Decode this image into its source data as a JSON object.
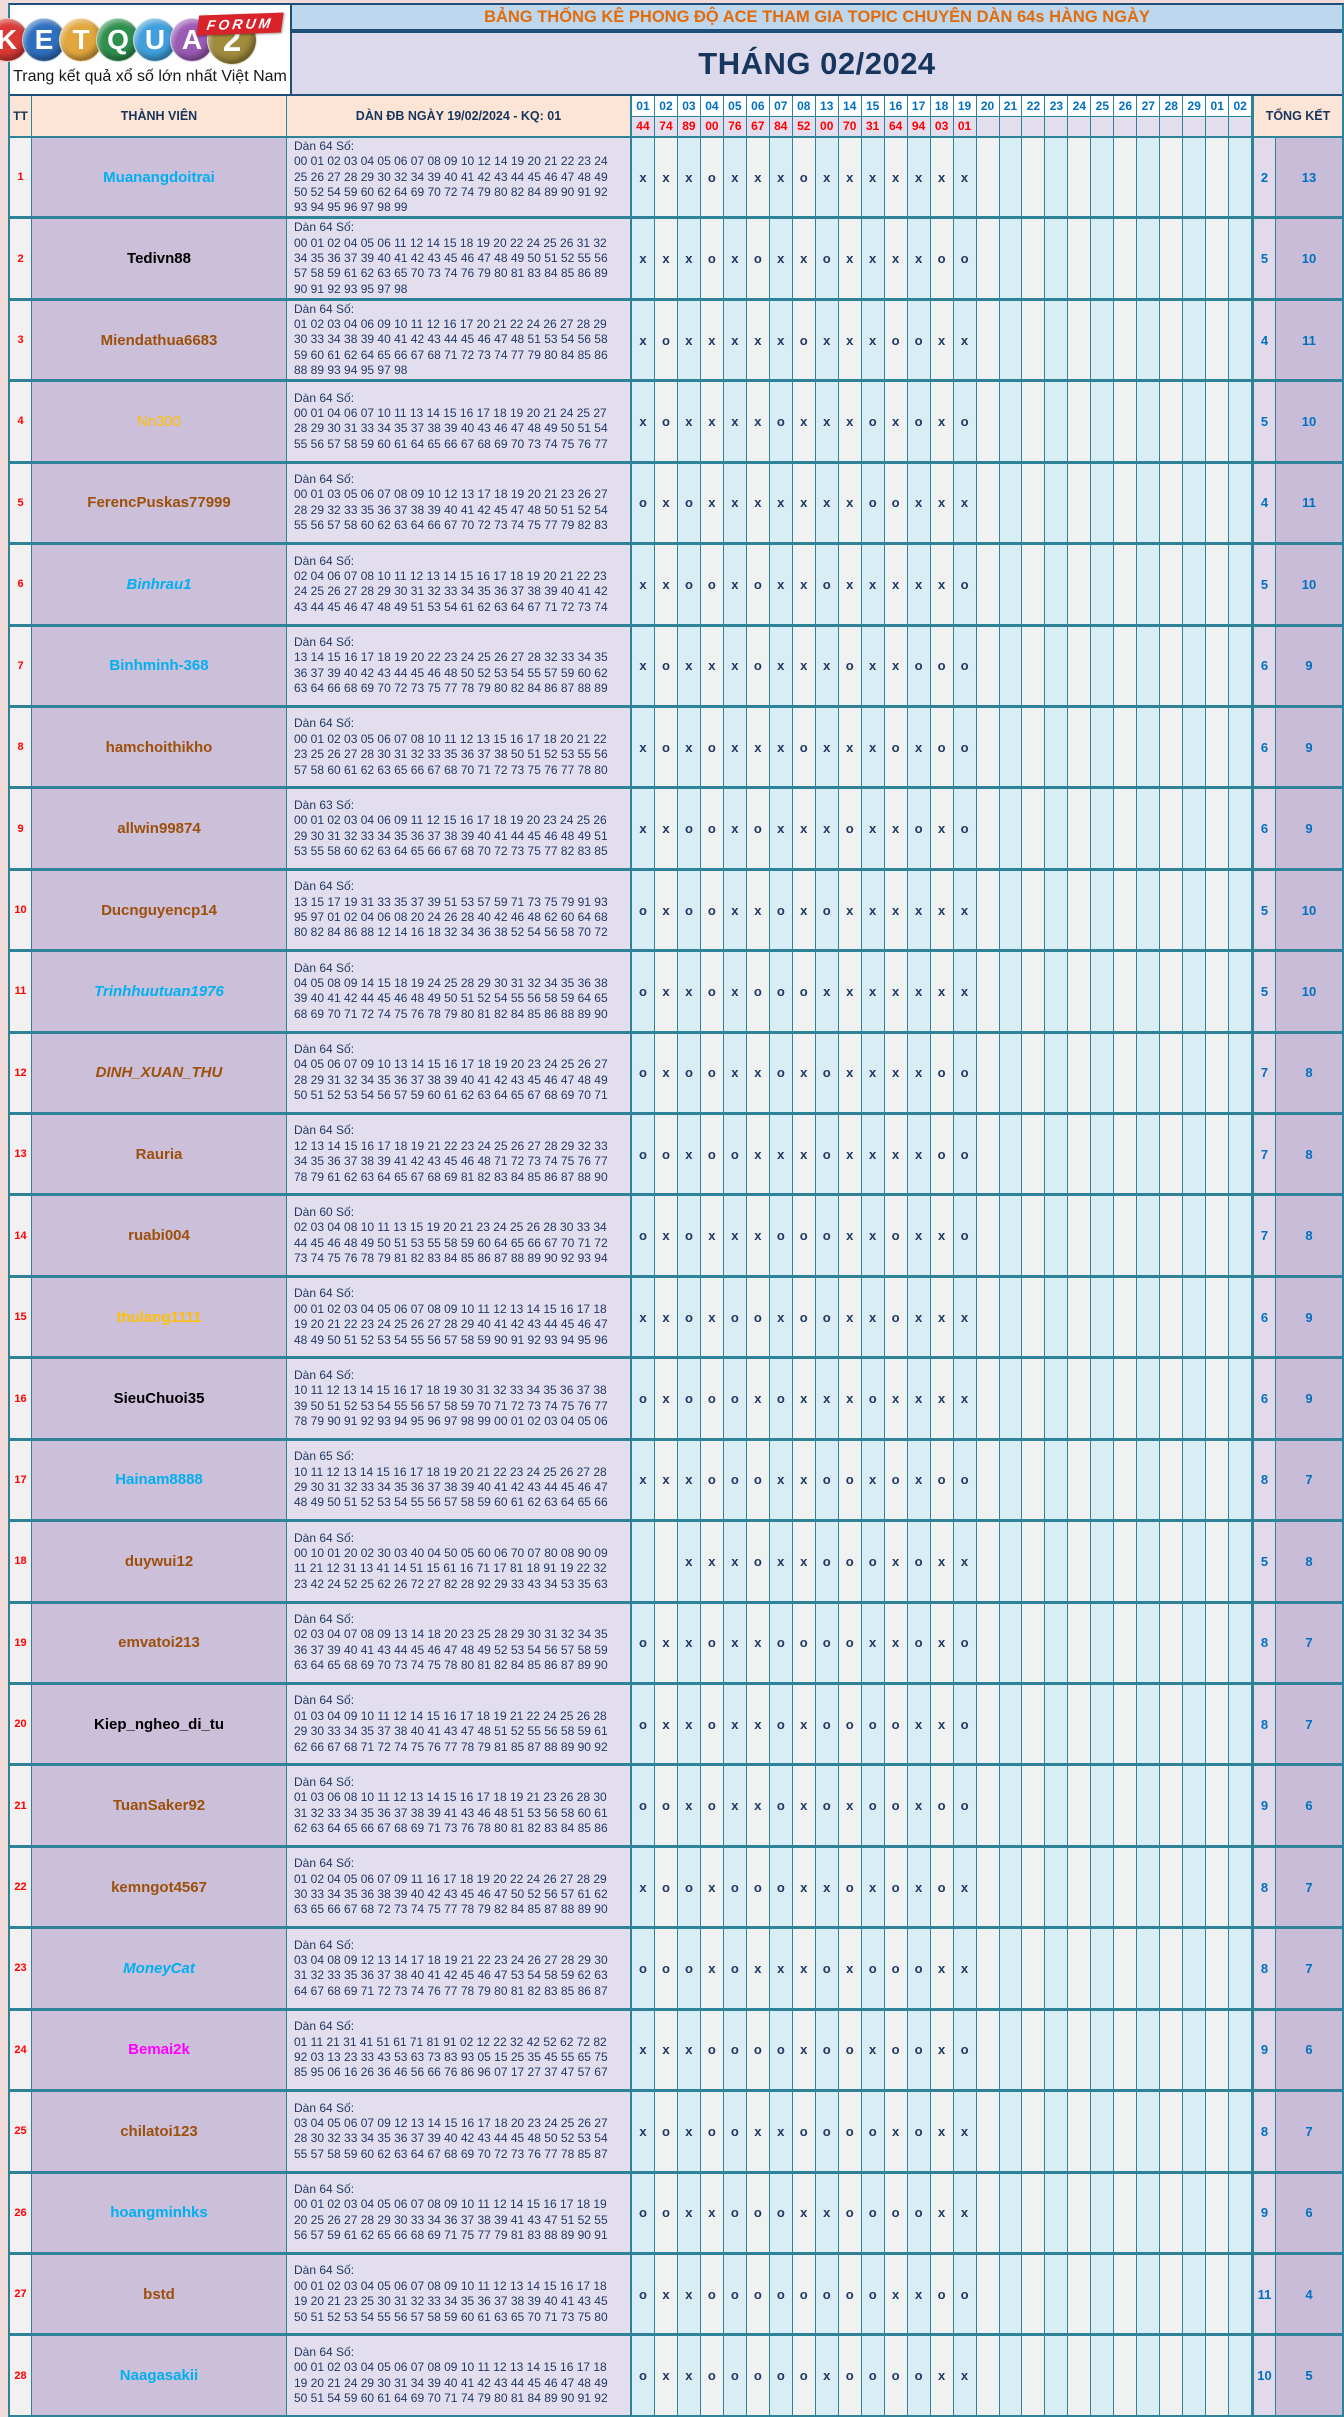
{
  "logo": {
    "letters": [
      {
        "ch": "K",
        "color": "#D93A36"
      },
      {
        "ch": "E",
        "color": "#2F6FBF"
      },
      {
        "ch": "T",
        "color": "#E2A63D"
      },
      {
        "ch": "Q",
        "color": "#2F8F4E"
      },
      {
        "ch": "U",
        "color": "#41A0DC"
      },
      {
        "ch": "A",
        "color": "#9A5BB5"
      },
      {
        "ch": "2",
        "color": "#A08A3C"
      }
    ],
    "forum_label": "FORUM",
    "tagline": "Trang kết quả xổ số lớn nhất Việt Nam"
  },
  "header": {
    "title": "BẢNG THỐNG KÊ PHONG ĐỘ ACE THAM GIA TOPIC CHUYÊN DÀN 64s HÀNG NGÀY",
    "month_title": "THÁNG 02/2024",
    "col_tt": "TT",
    "col_member": "THÀNH VIÊN",
    "col_dan": "DÀN ĐB NGÀY 19/02/2024 - KQ: 01",
    "col_total": "TỔNG KẾT",
    "dates": [
      "01",
      "02",
      "03",
      "04",
      "05",
      "06",
      "07",
      "08",
      "13",
      "14",
      "15",
      "16",
      "17",
      "18",
      "19",
      "20",
      "21",
      "22",
      "23",
      "24",
      "25",
      "26",
      "27",
      "28",
      "29",
      "01",
      "02"
    ],
    "results": [
      "44",
      "74",
      "89",
      "00",
      "76",
      "67",
      "84",
      "52",
      "00",
      "70",
      "31",
      "64",
      "94",
      "03",
      "01"
    ]
  },
  "theme": {
    "border_teal": "#2E8399",
    "mark_navy": "#1F3864",
    "date_blue": "#0070C0",
    "result_red": "#FF0000",
    "name_cyan": "#00B0F0",
    "name_brown": "#9C500B",
    "name_orange": "#FFC000",
    "name_magenta": "#FF00FF",
    "header_peach": "#FCE4D6",
    "cell_mauve": "#CBBFD9",
    "cell_lavender": "#E3DEED"
  },
  "members": [
    {
      "tt": "1",
      "name": "Muanangdoitrai",
      "color": "#00B0F0",
      "bold": true,
      "italic": false,
      "dan_label": "Dàn 64 Số:",
      "lines": [
        "00 01 02 03 04 05 06 07 08 09 10 12 14 19 20 21 22 23 24",
        "25 26 27 28 29 30 32 34 39 40 41 42 43 44 45 46 47 48 49",
        "50 52 54 59 60 62 64 69 70 72 74 79 80 82 84 89 90 91 92",
        "93 94 95 96 97 98 99"
      ],
      "marks": "x x x o x x x o x x x x x x x",
      "totals": [
        "2",
        "13"
      ]
    },
    {
      "tt": "2",
      "name": "Tedivn88",
      "color": "#000000",
      "bold": true,
      "italic": false,
      "dan_label": "Dàn 64 Số:",
      "lines": [
        "00 01 02 04 05 06 11 12 14 15 18 19 20 22 24 25 26 31 32",
        "34 35 36 37 39 40 41 42 43 45 46 47 48 49 50 51 52 55 56",
        "57 58 59 61 62 63 65 70 73 74 76 79 80 81 83 84 85 86 89",
        "90 91 92 93 95 97 98"
      ],
      "marks": "x x x o x o x x o x x x x o o",
      "totals": [
        "5",
        "10"
      ]
    },
    {
      "tt": "3",
      "name": "Miendathua6683",
      "color": "#9C500B",
      "bold": true,
      "italic": false,
      "dan_label": "Dàn 64 Số:",
      "lines": [
        "01 02 03 04 06 09 10 11 12 16 17 20 21 22 24 26 27 28 29",
        "30 33 34 38 39 40 41 42 43 44 45 46 47 48 51 53 54 56 58",
        "59 60 61 62 64 65 66 67 68 71 72 73 74 77 79 80 84 85 86",
        "88 89 93 94 95 97 98"
      ],
      "marks": "x o x x x x x o x x x o o x x",
      "totals": [
        "4",
        "11"
      ]
    },
    {
      "tt": "4",
      "name": "Nn300",
      "color": "#FFC000",
      "bold": false,
      "italic": false,
      "dan_label": "Dàn 64 Số:",
      "lines": [
        "00 01 04 06 07 10 11 13 14 15 16 17 18 19 20 21 24 25 27",
        "28 29 30 31 33 34 35 37 38 39 40 43 46 47 48 49 50 51 54",
        "55 56 57 58 59 60 61 64 65 66 67 68 69 70 73 74 75 76 77"
      ],
      "marks": "x o x x x x o x x x o x o x o",
      "totals": [
        "5",
        "10"
      ]
    },
    {
      "tt": "5",
      "name": "FerencPuskas77999",
      "color": "#9C500B",
      "bold": true,
      "italic": false,
      "dan_label": "Dàn 64 Số:",
      "lines": [
        "00 01 03 05 06 07 08 09 10 12 13 17 18 19 20 21 23 26 27",
        "28 29 32 33 35 36 37 38 39 40 41 42 45 47 48 50 51 52 54",
        "55 56 57 58 60 62 63 64 66 67 70 72 73 74 75 77 79 82 83"
      ],
      "marks": "o x o x x x x x x x o o x x x",
      "totals": [
        "4",
        "11"
      ]
    },
    {
      "tt": "6",
      "name": "Binhrau1",
      "color": "#00B0F0",
      "bold": true,
      "italic": true,
      "dan_label": "Dàn 64 Số:",
      "lines": [
        "02 04 06 07 08 10 11 12 13 14 15 16 17 18 19 20 21 22 23",
        "24 25 26 27 28 29 30 31 32 33 34 35 36 37 38 39 40 41 42",
        "43 44 45 46 47 48 49 51 53 54 61 62 63 64 67 71 72 73 74"
      ],
      "marks": "x x o o x o x x o x x x x x o",
      "totals": [
        "5",
        "10"
      ]
    },
    {
      "tt": "7",
      "name": "Binhminh-368",
      "color": "#00B0F0",
      "bold": true,
      "italic": false,
      "dan_label": "Dàn 64 Số:",
      "lines": [
        "13 14 15 16 17 18 19 20 22 23 24 25 26 27 28 32 33 34 35",
        "36 37 39 40 42 43 44 45 46 48 50 52 53 54 55 57 59 60 62",
        "63 64 66 68 69 70 72 73 75 77 78 79 80 82 84 86 87 88 89"
      ],
      "marks": "x o x x x o x x x o x x o o o",
      "totals": [
        "6",
        "9"
      ]
    },
    {
      "tt": "8",
      "name": "hamchoithikho",
      "color": "#9C500B",
      "bold": true,
      "italic": false,
      "dan_label": "Dàn 64 Số:",
      "lines": [
        "00 01 02 03 05 06 07 08 10 11 12 13 15 16 17 18 20 21 22",
        "23 25 26 27 28 30 31 32 33 35 36 37 38 50 51 52 53 55 56",
        "57 58 60 61 62 63 65 66 67 68 70 71 72 73 75 76 77 78 80"
      ],
      "marks": "x o x o x x x o x x x o x o o",
      "totals": [
        "6",
        "9"
      ]
    },
    {
      "tt": "9",
      "name": "allwin99874",
      "color": "#9C500B",
      "bold": true,
      "italic": false,
      "dan_label": "Dàn 63 Số:",
      "lines": [
        "00 01 02 03 04 06 09 11 12 15 16 17 18 19 20 23 24 25 26",
        "29 30 31 32 33 34 35 36 37 38 39 40 41 44 45 46 48 49 51",
        "53 55 58 60 62 63 64 65 66 67 68 70 72 73 75 77 82 83 85"
      ],
      "marks": "x x o o x o x x x o x x o x o",
      "totals": [
        "6",
        "9"
      ]
    },
    {
      "tt": "10",
      "name": "Ducnguyencp14",
      "color": "#9C500B",
      "bold": true,
      "italic": false,
      "dan_label": "Dàn 64 Số:",
      "lines": [
        "13 15 17 19 31 33 35 37 39 51 53 57 59 71 73 75 79 91 93",
        "95 97 01 02 04 06 08 20 24 26 28 40 42 46 48 62 60 64 68",
        "80 82 84 86 88 12 14 16 18 32 34 36 38 52 54 56 58 70 72"
      ],
      "marks": "o x o o x x o x o x x x x x x",
      "totals": [
        "5",
        "10"
      ]
    },
    {
      "tt": "11",
      "name": "Trinhhuutuan1976",
      "color": "#00B0F0",
      "bold": true,
      "italic": true,
      "dan_label": "Dàn 64 Số:",
      "lines": [
        "04 05 08 09 14 15 18 19 24 25 28 29 30 31 32 34 35 36 38",
        "39 40 41 42 44 45 46 48 49 50 51 52 54 55 56 58 59 64 65",
        "68 69 70 71 72 74 75 76 78 79 80 81 82 84 85 86 88 89 90"
      ],
      "marks": "o x x o x o o o x x x x x x x",
      "totals": [
        "5",
        "10"
      ]
    },
    {
      "tt": "12",
      "name": "DINH_XUAN_THU",
      "color": "#9C500B",
      "bold": true,
      "italic": true,
      "dan_label": "Dàn 64 Số:",
      "lines": [
        "04 05 06 07 09 10 13 14 15 16 17 18 19 20 23 24 25 26 27",
        "28 29 31 32 34 35 36 37 38 39 40 41 42 43 45 46 47 48 49",
        "50 51 52 53 54 56 57 59 60 61 62 63 64 65 67 68 69 70 71"
      ],
      "marks": "o x o o x x o x o x x x x o o",
      "totals": [
        "7",
        "8"
      ]
    },
    {
      "tt": "13",
      "name": "Rauria",
      "color": "#9C500B",
      "bold": true,
      "italic": false,
      "dan_label": "Dàn 64 Số:",
      "lines": [
        "12 13 14 15 16 17 18 19 21 22 23 24 25 26 27 28 29 32 33",
        "34 35 36 37 38 39 41 42 43 45 46 48 71 72 73 74 75 76 77",
        "78 79 61 62 63 64 65 67 68 69 81 82 83 84 85 86 87 88 90"
      ],
      "marks": "o o x o o x x x o x x x x o o",
      "totals": [
        "7",
        "8"
      ]
    },
    {
      "tt": "14",
      "name": "ruabi004",
      "color": "#9C500B",
      "bold": true,
      "italic": false,
      "dan_label": "Dàn 60 Số:",
      "lines": [
        "02 03 04 08 10 11 13 15 19 20 21 23 24 25 26 28 30 33 34",
        "44 45 46 48 49 50 51 53 55 58 59 60 64 65 66 67 70 71 72",
        "73 74 75 76 78 79 81 82 83 84 85 86 87 88 89 90 92 93 94"
      ],
      "marks": "o x o x x x o o o x x o x x o",
      "totals": [
        "7",
        "8"
      ]
    },
    {
      "tt": "15",
      "name": "thulang1111",
      "color": "#FFC000",
      "bold": true,
      "italic": false,
      "dan_label": "Dàn 64 Số:",
      "lines": [
        "00 01 02 03 04 05 06 07 08 09 10 11 12 13 14 15 16 17 18",
        "19 20 21 22 23 24 25 26 27 28 29 40 41 42 43 44 45 46 47",
        "48 49 50 51 52 53 54 55 56 57 58 59 90 91 92 93 94 95 96"
      ],
      "marks": "x x o x o o x o o x x o x x x",
      "totals": [
        "6",
        "9"
      ]
    },
    {
      "tt": "16",
      "name": "SieuChuoi35",
      "color": "#000000",
      "bold": true,
      "italic": false,
      "dan_label": "Dàn 64 Số:",
      "lines": [
        "10 11 12 13 14 15 16 17 18 19 30 31 32 33 34 35 36 37 38",
        "39 50 51 52 53 54 55 56 57 58 59 70 71 72 73 74 75 76 77",
        "78 79 90 91 92 93 94 95 96 97 98 99 00 01 02 03 04 05 06"
      ],
      "marks": "o x o o o x o x x x o x x x x",
      "totals": [
        "6",
        "9"
      ]
    },
    {
      "tt": "17",
      "name": "Hainam8888",
      "color": "#00B0F0",
      "bold": true,
      "italic": false,
      "dan_label": "Dàn 65 Số:",
      "lines": [
        "10 11 12 13 14 15 16 17 18 19 20 21 22 23 24 25 26 27 28",
        "29 30 31 32 33 34 35 36 37 38 39 40 41 42 43 44 45 46 47",
        "48 49 50 51 52 53 54 55 56 57 58 59 60 61 62 63 64 65 66"
      ],
      "marks": "x x x o o o x x o o x o x o o",
      "totals": [
        "8",
        "7"
      ]
    },
    {
      "tt": "18",
      "name": "duywui12",
      "color": "#9C500B",
      "bold": true,
      "italic": false,
      "dan_label": "Dàn 64 Số:",
      "lines": [
        "00 10 01 20 02 30 03 40 04 50 05 60 06 70 07 80 08 90 09",
        "11 21 12 31 13 41 14 51 15 61 16 71 17 81 18 91 19 22 32",
        "23 42 24 52 25 62 26 72 27 82 28 92 29 33 43 34 53 35 63"
      ],
      "marks": ". . x x x o x x o o o x o x x",
      "totals": [
        "5",
        "8"
      ]
    },
    {
      "tt": "19",
      "name": "emvatoi213",
      "color": "#9C500B",
      "bold": true,
      "italic": false,
      "dan_label": "Dàn 64 Số:",
      "lines": [
        "02 03 04 07 08 09 13 14 18 20 23 25 28 29 30 31 32 34 35",
        "36 37 39 40 41 43 44 45 46 47 48 49 52 53 54 56 57 58 59",
        "63 64 65 68 69 70 73 74 75 78 80 81 82 84 85 86 87 89 90"
      ],
      "marks": "o x x o x x o o o o x x o x o",
      "totals": [
        "8",
        "7"
      ]
    },
    {
      "tt": "20",
      "name": "Kiep_ngheo_di_tu",
      "color": "#000000",
      "bold": true,
      "italic": false,
      "dan_label": "Dàn 64 Số:",
      "lines": [
        "01 03 04 09 10 11 12 14 15 16 17 18 19 21 22 24 25 26 28",
        "29 30 33 34 35 37 38 40 41 43 47 48 51 52 55 56 58 59 61",
        "62 66 67 68 71 72 74 75 76 77 78 79 81 85 87 88 89 90 92"
      ],
      "marks": "o x x o x x o x o o o o x x o",
      "totals": [
        "8",
        "7"
      ]
    },
    {
      "tt": "21",
      "name": "TuanSaker92",
      "color": "#9C500B",
      "bold": true,
      "italic": false,
      "dan_label": "Dàn 64 Số:",
      "lines": [
        "01 03 06 08 10 11 12 13 14 15 16 17 18 19 21 23 26 28 30",
        "31 32 33 34 35 36 37 38 39 41 43 46 48 51 53 56 58 60 61",
        "62 63 64 65 66 67 68 69 71 73 76 78 80 81 82 83 84 85 86"
      ],
      "marks": "o o x o x x o x o x o o x o o",
      "totals": [
        "9",
        "6"
      ]
    },
    {
      "tt": "22",
      "name": "kemngot4567",
      "color": "#9C500B",
      "bold": true,
      "italic": false,
      "dan_label": "Dàn 64 Số:",
      "lines": [
        "01 02 04 05 06 07 09 11 16 17 18 19 20 22 24 26 27 28 29",
        "30 33 34 35 36 38 39 40 42 43 45 46 47 50 52 56 57 61 62",
        "63 65 66 67 68 72 73 74 75 77 78 79 82 84 85 87 88 89 90"
      ],
      "marks": "x o o x o o o x x o x o x o x",
      "totals": [
        "8",
        "7"
      ]
    },
    {
      "tt": "23",
      "name": "MoneyCat",
      "color": "#00B0F0",
      "bold": true,
      "italic": true,
      "dan_label": "Dàn 64 Số:",
      "lines": [
        "03 04 08 09 12 13 14 17 18 19 21 22 23 24 26 27 28 29 30",
        "31 32 33 35 36 37 38 40 41 42 45 46 47 53 54 58 59 62 63",
        "64 67 68 69 71 72 73 74 76 77 78 79 80 81 82 83 85 86 87"
      ],
      "marks": "o o o x o x x x o x o o o x x",
      "totals": [
        "8",
        "7"
      ]
    },
    {
      "tt": "24",
      "name": "Bemai2k",
      "color": "#FF00FF",
      "bold": true,
      "italic": false,
      "dan_label": "Dàn 64 Số:",
      "lines": [
        "01 11 21 31 41 51 61 71 81 91 02 12 22 32 42 52 62 72 82",
        "92 03 13 23 33 43 53 63 73 83 93 05 15 25 35 45 55 65 75",
        "85 95 06 16 26 36 46 56 66 76 86 96 07 17 27 37 47 57 67"
      ],
      "marks": "x x x o o o o x o o x o o x o",
      "totals": [
        "9",
        "6"
      ]
    },
    {
      "tt": "25",
      "name": "chilatoi123",
      "color": "#9C500B",
      "bold": true,
      "italic": false,
      "dan_label": "Dàn 64 Số:",
      "lines": [
        "03 04 05 06 07 09 12 13 14 15 16 17 18 20 23 24 25 26 27",
        "28 30 32 33 34 35 36 37 39 40 42 43 44 45 48 50 52 53 54",
        "55 57 58 59 60 62 63 64 67 68 69 70 72 73 76 77 78 85 87"
      ],
      "marks": "x o x o o x x o o o o x o x x",
      "totals": [
        "8",
        "7"
      ]
    },
    {
      "tt": "26",
      "name": "hoangminhks",
      "color": "#00B0F0",
      "bold": true,
      "italic": false,
      "dan_label": "Dàn 64 Số:",
      "lines": [
        "00 01 02 03 04 05 06 07 08 09 10 11 12 14 15 16 17 18 19",
        "20 25 26 27 28 29 30 33 34 36 37 38 39 41 43 47 51 52 55",
        "56 57 59 61 62 65 66 68 69 71 75 77 79 81 83 88 89 90 91"
      ],
      "marks": "o o x x o o o x x o o o o x x",
      "totals": [
        "9",
        "6"
      ]
    },
    {
      "tt": "27",
      "name": "bstd",
      "color": "#9C500B",
      "bold": true,
      "italic": false,
      "dan_label": "Dàn 64 Số:",
      "lines": [
        "00 01 02 03 04 05 06 07 08 09 10 11 12 13 14 15 16 17 18",
        "19 20 21 23 25 30 31 32 33 34 35 36 37 38 39 40 41 43 45",
        "50 51 52 53 54 55 56 57 58 59 60 61 63 65 70 71 73 75 80"
      ],
      "marks": "o x x o o o o o o o o x x o o",
      "totals": [
        "11",
        "4"
      ]
    },
    {
      "tt": "28",
      "name": "Naagasakii",
      "color": "#00B0F0",
      "bold": true,
      "italic": false,
      "dan_label": "Dàn 64 Số:",
      "lines": [
        "00 01 02 03 04 05 06 07 08 09 10 11 12 13 14 15 16 17 18",
        "19 20 21 24 29 30 31 34 39 40 41 42 43 44 45 46 47 48 49",
        "50 51 54 59 60 61 64 69 70 71 74 79 80 81 84 89 90 91 92"
      ],
      "marks": "o x x o o o o o x o o o o x x",
      "totals": [
        "10",
        "5"
      ]
    }
  ]
}
